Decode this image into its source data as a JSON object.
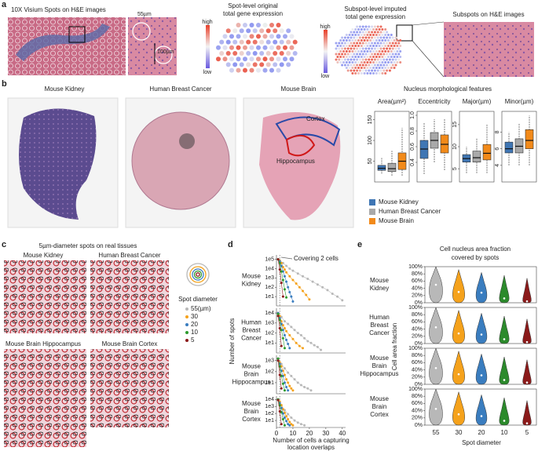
{
  "panels": {
    "labels": [
      "a",
      "b",
      "c",
      "d",
      "e"
    ],
    "a": {
      "left_title": "10X Visium Spots on H&E images",
      "scale_width": "55µm",
      "scale_height": "100µm",
      "mid_title": [
        "Spot-level original",
        "total gene expression"
      ],
      "colorbar": [
        "high",
        "low"
      ],
      "right_title": [
        "Subspot-level imputed",
        "total gene expression"
      ],
      "far_title": "Subspots on H&E images"
    },
    "b": {
      "tissues": [
        "Mouse Kidney",
        "Human Breast Cancer",
        "Mouse Brain"
      ],
      "regions": [
        "Cortex",
        "Hippocampus"
      ]
    },
    "c": {
      "title": "5µm-diameter spots on real tissues",
      "tissues": [
        "Mouse Kidney",
        "Human Breast Cancer",
        "Mouse Brain Hippocampus",
        "Mouse  Brain Cortex"
      ]
    }
  },
  "chart_data": [
    {
      "type": "box",
      "title": "Nucleus morphological features",
      "groups": [
        "Mouse Kidney",
        "Human Breast Cancer",
        "Mouse Brain"
      ],
      "colors": [
        "#3f76b4",
        "#a9a9a9",
        "#f28a1a"
      ],
      "subplots": [
        {
          "title": "Area(µm²)",
          "ylim": [
            0,
            170
          ],
          "yticks": [
            50,
            100,
            150
          ],
          "series": [
            [
              20,
              28,
              33,
              40,
              58
            ],
            [
              15,
              25,
              32,
              45,
              75
            ],
            [
              15,
              30,
              50,
              70,
              130
            ]
          ]
        },
        {
          "title": "Eccentricity",
          "ylim": [
            0.15,
            1.05
          ],
          "yticks": [
            0.4,
            0.6,
            0.8,
            {
              "value": 1,
              "label": "1.0"
            }
          ],
          "series": [
            [
              0.25,
              0.45,
              0.57,
              0.68,
              0.9
            ],
            [
              0.4,
              0.58,
              0.68,
              0.78,
              0.95
            ],
            [
              0.3,
              0.52,
              0.63,
              0.75,
              0.95
            ]
          ]
        },
        {
          "title": "Major(µm)",
          "ylim": [
            2,
            18
          ],
          "yticks": [
            5,
            10,
            15
          ],
          "series": [
            [
              4,
              6.5,
              7.3,
              8.2,
              10
            ],
            [
              4,
              6.5,
              7.5,
              9,
              12
            ],
            [
              4,
              7,
              8.5,
              10.5,
              15
            ]
          ]
        },
        {
          "title": "Minor(µm)",
          "ylim": [
            2,
            10.5
          ],
          "yticks": [
            4,
            6,
            8
          ],
          "series": [
            [
              4,
              5.5,
              6,
              6.8,
              8
            ],
            [
              4,
              5.5,
              6.3,
              7.2,
              9
            ],
            [
              4,
              6,
              7,
              8.3,
              10
            ]
          ]
        }
      ]
    },
    {
      "type": "line",
      "log_y": true,
      "ylabel": "Number of spots",
      "xlabel": [
        "Number of cells a capturing",
        "location overlaps"
      ],
      "annotation": "Covering 2 cells",
      "legend_title": "Spot diameter",
      "xlim": [
        0,
        42
      ],
      "xticks": [
        0,
        10,
        20,
        30,
        40
      ],
      "series_meta": [
        {
          "name": "55(µm)",
          "color": "#b8b8b8"
        },
        {
          "name": "30",
          "color": "#f5a21c"
        },
        {
          "name": "20",
          "color": "#3a7dbf"
        },
        {
          "name": "10",
          "color": "#2c9a2c"
        },
        {
          "name": "5",
          "color": "#8b1a1a"
        }
      ],
      "subplots": [
        {
          "label": [
            "Mouse",
            "Kidney"
          ],
          "ylim": [
            1,
            300000
          ],
          "yticks": [
            {
              "value": 10,
              "label": "1e1"
            },
            {
              "value": 100,
              "label": "1e2"
            },
            {
              "value": 1000,
              "label": "1e3"
            },
            {
              "value": 10000,
              "label": "1e4"
            },
            {
              "value": 100000,
              "label": "1e5"
            }
          ],
          "series": [
            {
              "x": [
                1,
                2,
                4,
                6,
                8,
                10,
                13,
                16,
                19,
                22,
                25,
                28,
                31,
                34,
                37,
                40
              ],
              "values": [
                100000,
                80000,
                40000,
                20000,
                10000,
                6000,
                3000,
                1500,
                800,
                400,
                200,
                100,
                50,
                20,
                10,
                4
              ]
            },
            {
              "x": [
                1,
                2,
                3,
                4,
                5,
                6,
                8,
                10,
                12,
                14,
                16,
                18,
                20
              ],
              "values": [
                100000,
                70000,
                40000,
                15000,
                8000,
                4000,
                1500,
                600,
                250,
                100,
                40,
                15,
                5
              ]
            },
            {
              "x": [
                1,
                2,
                3,
                4,
                5,
                6,
                7,
                8,
                9,
                10
              ],
              "values": [
                100000,
                60000,
                20000,
                5000,
                1500,
                400,
                100,
                30,
                10,
                3
              ]
            },
            {
              "x": [
                1,
                2,
                3,
                4,
                5,
                6
              ],
              "values": [
                100000,
                40000,
                5000,
                600,
                60,
                8
              ]
            },
            {
              "x": [
                1,
                2,
                3,
                4
              ],
              "values": [
                100000,
                8000,
                300,
                10
              ]
            }
          ]
        },
        {
          "label": [
            "Human",
            "Breast",
            "Cancer"
          ],
          "ylim": [
            1,
            30000
          ],
          "yticks": [
            {
              "value": 10,
              "label": "1e1"
            },
            {
              "value": 100,
              "label": "1e2"
            },
            {
              "value": 1000,
              "label": "1e3"
            },
            {
              "value": 10000,
              "label": "1e4"
            }
          ],
          "series": [
            {
              "x": [
                1,
                3,
                5,
                7,
                9,
                11,
                13,
                15,
                17,
                19,
                21,
                23,
                25,
                27
              ],
              "values": [
                10000,
                4000,
                1500,
                800,
                400,
                200,
                100,
                60,
                30,
                15,
                10,
                6,
                4,
                2
              ]
            },
            {
              "x": [
                1,
                2,
                3,
                4,
                5,
                6,
                8,
                10,
                12,
                14,
                16
              ],
              "values": [
                10000,
                5000,
                1500,
                600,
                300,
                150,
                60,
                25,
                10,
                5,
                3
              ]
            },
            {
              "x": [
                1,
                2,
                3,
                4,
                5,
                6,
                7,
                8
              ],
              "values": [
                10000,
                3000,
                800,
                200,
                60,
                20,
                8,
                3
              ]
            },
            {
              "x": [
                1,
                2,
                3,
                4,
                5
              ],
              "values": [
                8000,
                2000,
                200,
                30,
                3
              ]
            },
            {
              "x": [
                1,
                2,
                3
              ],
              "values": [
                5000,
                300,
                5
              ]
            }
          ]
        },
        {
          "label": [
            "Mouse",
            "Brain",
            "Hippocampus"
          ],
          "ylim": [
            1,
            3000
          ],
          "yticks": [
            {
              "value": 10,
              "label": "1e1"
            },
            {
              "value": 100,
              "label": "1e2"
            },
            {
              "value": 1000,
              "label": "1e3"
            }
          ],
          "series": [
            {
              "x": [
                1,
                3,
                5,
                7,
                9,
                11,
                13,
                15,
                17,
                19,
                21
              ],
              "values": [
                1500,
                500,
                200,
                80,
                40,
                20,
                10,
                6,
                4,
                3,
                2
              ]
            },
            {
              "x": [
                1,
                2,
                3,
                4,
                5,
                6,
                7,
                8,
                9,
                10
              ],
              "values": [
                1500,
                700,
                300,
                120,
                50,
                20,
                10,
                5,
                3,
                2
              ]
            },
            {
              "x": [
                1,
                2,
                3,
                4,
                5,
                6,
                7
              ],
              "values": [
                1500,
                500,
                120,
                40,
                10,
                4,
                2
              ]
            },
            {
              "x": [
                1,
                2,
                3,
                4,
                5
              ],
              "values": [
                1500,
                300,
                40,
                8,
                2
              ]
            },
            {
              "x": [
                1,
                2,
                3
              ],
              "values": [
                1000,
                50,
                3
              ]
            }
          ]
        },
        {
          "label": [
            "Mouse",
            "Brain",
            "Cortex"
          ],
          "ylim": [
            1,
            30000
          ],
          "yticks": [
            {
              "value": 10,
              "label": "1e1"
            },
            {
              "value": 100,
              "label": "1e2"
            },
            {
              "value": 1000,
              "label": "1e3"
            },
            {
              "value": 10000,
              "label": "1e4"
            }
          ],
          "series": [
            {
              "x": [
                1,
                3,
                5,
                7,
                9,
                11,
                13,
                15,
                17
              ],
              "values": [
                10000,
                1500,
                300,
                80,
                25,
                10,
                5,
                3,
                2
              ]
            },
            {
              "x": [
                1,
                2,
                3,
                4,
                5,
                6,
                7,
                8,
                9,
                10
              ],
              "values": [
                10000,
                5000,
                1500,
                400,
                120,
                40,
                15,
                6,
                3,
                2
              ]
            },
            {
              "x": [
                1,
                2,
                3,
                4,
                5,
                6,
                7,
                8
              ],
              "values": [
                10000,
                3000,
                600,
                100,
                25,
                8,
                3,
                2
              ]
            },
            {
              "x": [
                1,
                2,
                3,
                4,
                5
              ],
              "values": [
                10000,
                1500,
                150,
                15,
                2
              ]
            },
            {
              "x": [
                1,
                2,
                3
              ],
              "values": [
                8000,
                200,
                3
              ]
            }
          ]
        }
      ]
    },
    {
      "type": "violin",
      "title": [
        "Cell nucleus area fraction",
        "covered by spots"
      ],
      "ylabel": "Cell area fraction",
      "xlabel": "Spot diameter",
      "categories": [
        "55",
        "30",
        "20",
        "10",
        "5"
      ],
      "colors": [
        "#b8b8b8",
        "#f5a21c",
        "#3a7dbf",
        "#2c8a2c",
        "#8b1a1a"
      ],
      "ylim": [
        0,
        100
      ],
      "yticks": [
        {
          "value": 0,
          "label": "0%"
        },
        {
          "value": 20,
          "label": "20%"
        },
        {
          "value": 40,
          "label": "40%"
        },
        {
          "value": 60,
          "label": "60%"
        },
        {
          "value": 80,
          "label": "80%"
        },
        {
          "value": 100,
          "label": "100%"
        }
      ],
      "subplots": [
        {
          "label": [
            "Mouse",
            "Kidney"
          ],
          "medians": [
            50,
            30,
            28,
            12,
            4
          ]
        },
        {
          "label": [
            "Human",
            "Breast",
            "Cancer"
          ],
          "medians": [
            45,
            28,
            25,
            12,
            4
          ]
        },
        {
          "label": [
            "Mouse",
            "Brain",
            "Hippocampus"
          ],
          "medians": [
            45,
            28,
            25,
            12,
            5
          ]
        },
        {
          "label": [
            "Mouse",
            "Brain",
            "Cortex"
          ],
          "medians": [
            45,
            30,
            25,
            12,
            5
          ]
        }
      ]
    }
  ]
}
